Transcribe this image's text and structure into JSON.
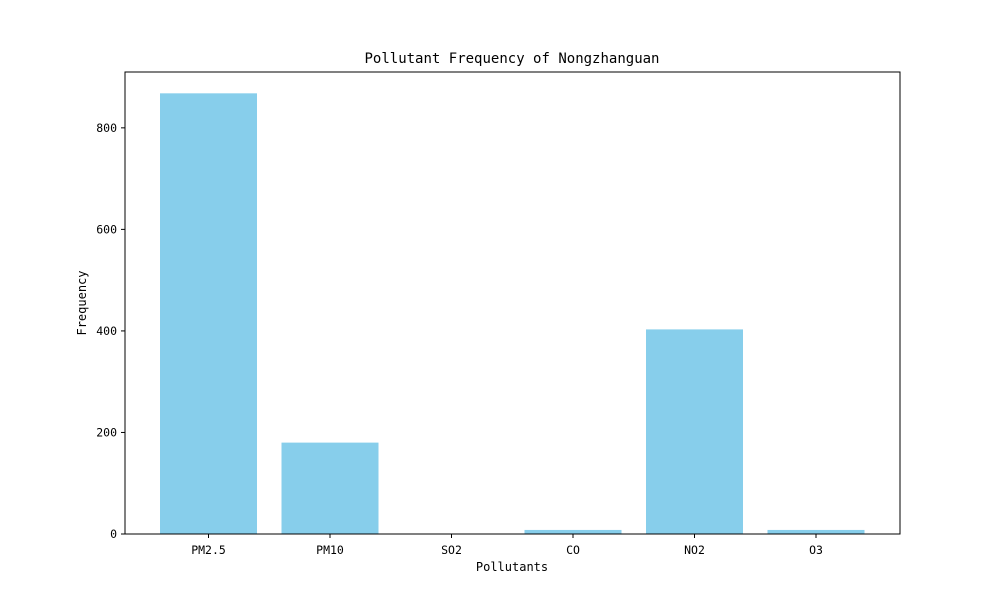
{
  "chart_data": {
    "type": "bar",
    "title": "Pollutant Frequency of Nongzhanguan",
    "xlabel": "Pollutants",
    "ylabel": "Frequency",
    "categories": [
      "PM2.5",
      "PM10",
      "SO2",
      "CO",
      "NO2",
      "O3"
    ],
    "values": [
      868,
      180,
      0,
      8,
      403,
      8
    ],
    "ylim": [
      0,
      910
    ],
    "yticks": [
      0,
      200,
      400,
      600,
      800
    ],
    "bar_color": "#87ceeb",
    "grid": false,
    "legend": "none"
  }
}
